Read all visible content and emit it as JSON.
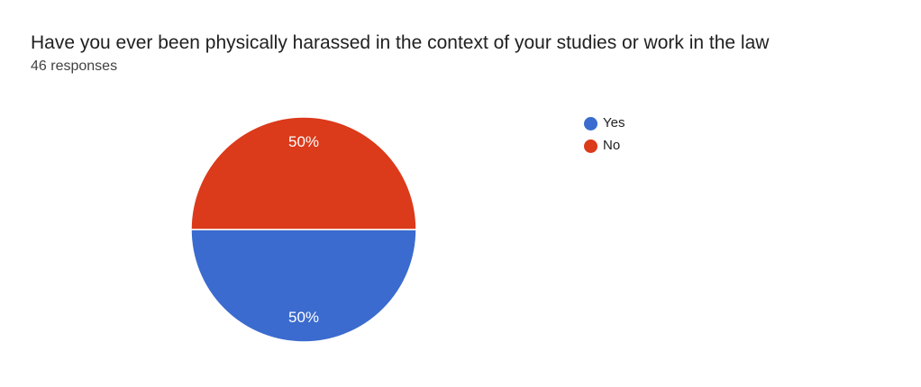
{
  "chart_data": {
    "type": "pie",
    "title": "Have you ever been physically harassed in the context of your studies or work in the law",
    "subtitle": "46 responses",
    "labels": [
      "Yes",
      "No"
    ],
    "values": [
      50,
      50
    ],
    "value_unit": "percent",
    "slice_labels": [
      "50%",
      "50%"
    ],
    "colors": [
      "#3B6BCE",
      "#DB3A1B"
    ],
    "slice_label_color": "#ffffff",
    "legend_position": "right",
    "start_angle_deg": 90,
    "background": "#ffffff"
  }
}
